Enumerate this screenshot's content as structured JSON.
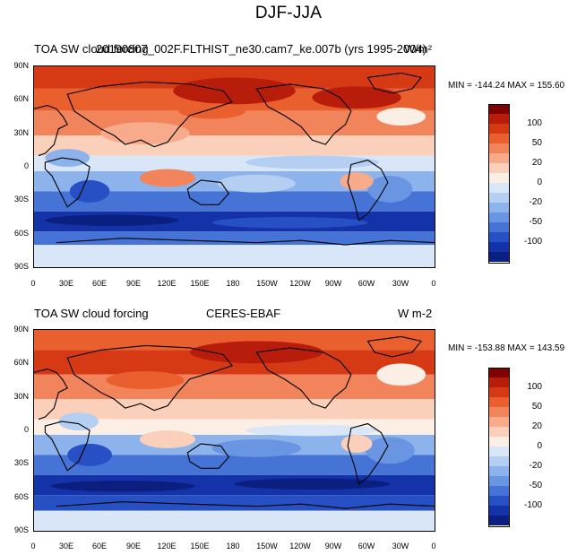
{
  "page": {
    "title": "DJF-JJA"
  },
  "panels": [
    {
      "id": "model",
      "left_title": "TOA SW cloud forcing",
      "center_title": "20190807_002F.FLTHIST_ne30.cam7_ke.007b (yrs 1995-2004)",
      "right_title": "W/m²",
      "stats": "MIN = -144.24 MAX = 155.60"
    },
    {
      "id": "obs",
      "left_title": "TOA SW cloud forcing",
      "center_title": "CERES-EBAF",
      "right_title": "W m-2",
      "stats": "MIN = -153.88 MAX = 143.59"
    }
  ],
  "axes": {
    "lat_ticks": [
      "90N",
      "60N",
      "30N",
      "0",
      "30S",
      "60S",
      "90S"
    ],
    "lon_ticks": [
      "0",
      "30E",
      "60E",
      "90E",
      "120E",
      "150E",
      "180",
      "150W",
      "120W",
      "90W",
      "60W",
      "30W",
      "0"
    ]
  },
  "colorbar": {
    "labels": [
      "100",
      "50",
      "20",
      "0",
      "-20",
      "-50",
      "-100"
    ],
    "colors": [
      "#7f0000",
      "#b81d0b",
      "#d63a15",
      "#e9602e",
      "#f1845a",
      "#f7ab8a",
      "#fbd0bb",
      "#fbeee4",
      "#d9e6f7",
      "#b4cff2",
      "#8db3ec",
      "#6a95e2",
      "#4573d6",
      "#2650c4",
      "#1533a8",
      "#0b1f80"
    ]
  }
}
